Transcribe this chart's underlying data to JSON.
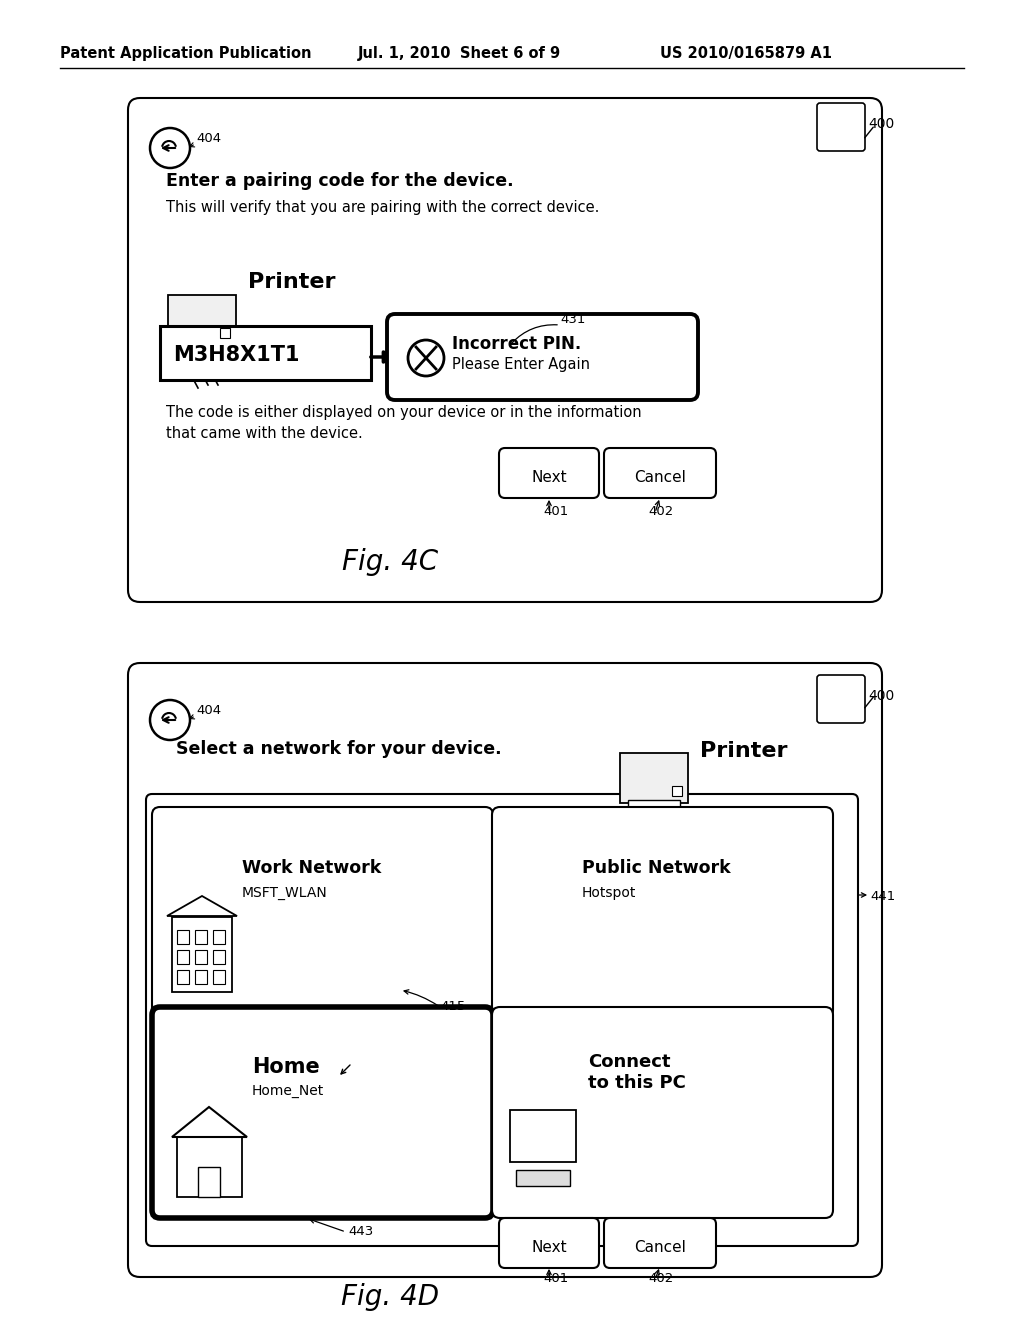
{
  "bg_color": "#ffffff",
  "header_text": "Patent Application Publication",
  "header_date": "Jul. 1, 2010",
  "header_sheet": "Sheet 6 of 9",
  "header_patent": "US 2010/0165879 A1",
  "fig4c": {
    "label": "Fig. 4C",
    "ref_400": "400",
    "ref_404": "404",
    "ref_431": "431",
    "ref_401": "401",
    "ref_402": "402",
    "title_bold": "Enter a pairing code for the device.",
    "subtitle": "This will verify that you are pairing with the correct device.",
    "device_label": "Printer",
    "pin_code": "M3H8X1T1",
    "error_title": "Incorrect PIN.",
    "error_sub": "Please Enter Again",
    "footer_text1": "The code is either displayed on your device or in the information",
    "footer_text2": "that came with the device.",
    "btn_next": "Next",
    "btn_cancel": "Cancel"
  },
  "fig4d": {
    "label": "Fig. 4D",
    "ref_400": "400",
    "ref_404": "404",
    "ref_415": "415",
    "ref_441": "441",
    "ref_443": "443",
    "ref_401": "401",
    "ref_402": "402",
    "title_bold": "Select a network for your device.",
    "device_label": "Printer",
    "net1_title": "Work Network",
    "net1_sub": "MSFT_WLAN",
    "net2_title": "Public Network",
    "net2_sub": "Hotspot",
    "net3_title": "Home",
    "net3_sub": "Home_Net",
    "net4_title1": "Connect",
    "net4_title2": "to this PC",
    "btn_next": "Next",
    "btn_cancel": "Cancel"
  }
}
